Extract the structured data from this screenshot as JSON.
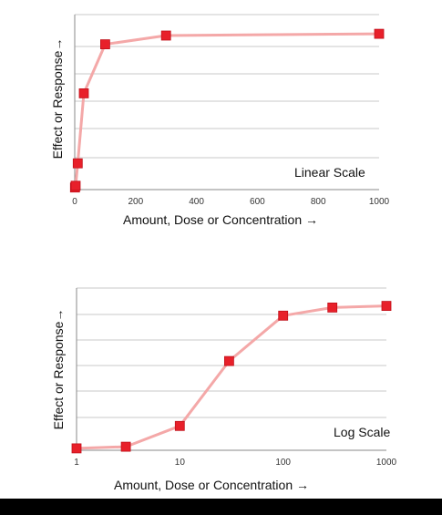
{
  "chart_data": [
    {
      "type": "line",
      "scale": "linear",
      "ylabel": "Effect or Response→",
      "xlabel": "Amount, Dose or Concentration  →",
      "annotation": "Linear Scale",
      "xlim": [
        0,
        1000
      ],
      "xticks": [
        "0",
        "200",
        "400",
        "600",
        "800",
        "1000"
      ],
      "xtick_values": [
        0,
        200,
        400,
        600,
        800,
        1000
      ],
      "grid": "horizontal",
      "series": [
        {
          "x": [
            1,
            3,
            10,
            30,
            100,
            300,
            1000
          ],
          "y": [
            1.2,
            2.2,
            15,
            55,
            83,
            88,
            89
          ]
        }
      ],
      "ylim": [
        0,
        100
      ],
      "line_color": "#f4a8a8",
      "marker_color": "#e8202a"
    },
    {
      "type": "line",
      "scale": "log",
      "ylabel": "Effect or Response→",
      "xlabel": "Amount, Dose or Concentration  →",
      "annotation": "Log Scale",
      "xlim": [
        1,
        1000
      ],
      "xticks": [
        "1",
        "10",
        "100",
        "1000"
      ],
      "xtick_values": [
        1,
        10,
        100,
        1000
      ],
      "grid": "horizontal",
      "series": [
        {
          "x": [
            1,
            3,
            10,
            30,
            100,
            300,
            1000
          ],
          "y": [
            1.2,
            2.2,
            15,
            55,
            83,
            88,
            89
          ]
        }
      ],
      "ylim": [
        0,
        100
      ],
      "line_color": "#f4a8a8",
      "marker_color": "#e8202a"
    }
  ]
}
